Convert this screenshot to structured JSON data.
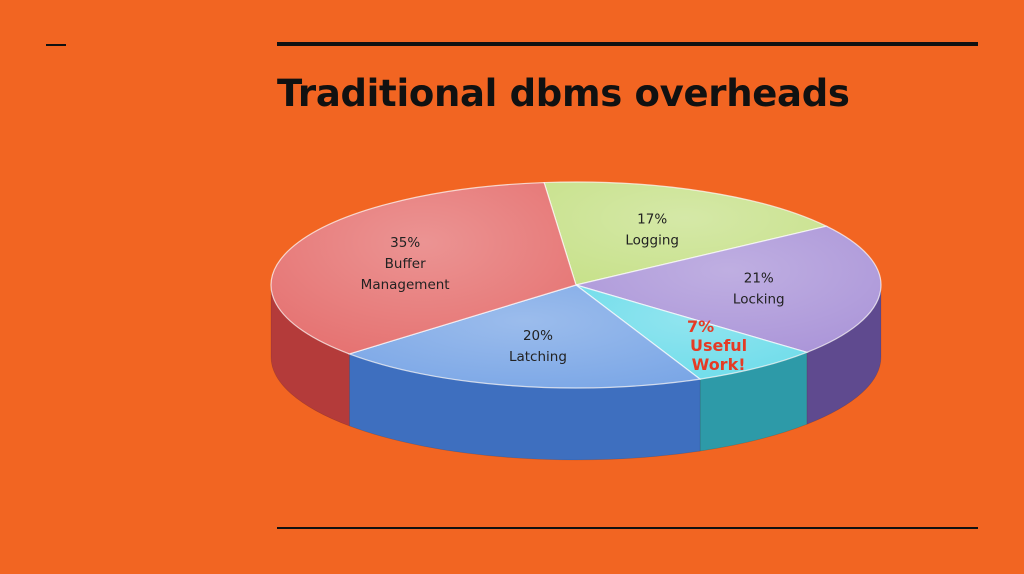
{
  "slide": {
    "title": "Traditional dbms overheads",
    "background": "#f26522"
  },
  "chart_data": {
    "type": "pie",
    "title": "",
    "categories": [
      "Logging",
      "Locking",
      "Useful Work!",
      "Latching",
      "Buffer Management"
    ],
    "values": [
      17,
      21,
      7,
      20,
      35
    ],
    "value_labels": [
      "17%",
      "21%",
      "7%",
      "20%",
      "35%"
    ],
    "colors": [
      "#c7e18a",
      "#aa94d8",
      "#6ddcea",
      "#7aa6e6",
      "#e5706f"
    ],
    "side_colors": [
      "#88a844",
      "#5f4a8f",
      "#2d9aa8",
      "#3e6fbf",
      "#b43b3a"
    ],
    "highlight": {
      "category": "Useful Work!",
      "text_color": "#e53b25"
    },
    "legend": "none"
  }
}
